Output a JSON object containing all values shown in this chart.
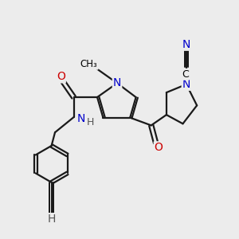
{
  "background_color": "#ececec",
  "atom_color_N": "#0000cc",
  "atom_color_O": "#cc0000",
  "atom_color_H": "#555555",
  "bond_color": "#1a1a1a",
  "bond_width": 1.6,
  "figsize": [
    3.0,
    3.0
  ],
  "dpi": 100,
  "xlim": [
    0,
    10
  ],
  "ylim": [
    0,
    10
  ]
}
